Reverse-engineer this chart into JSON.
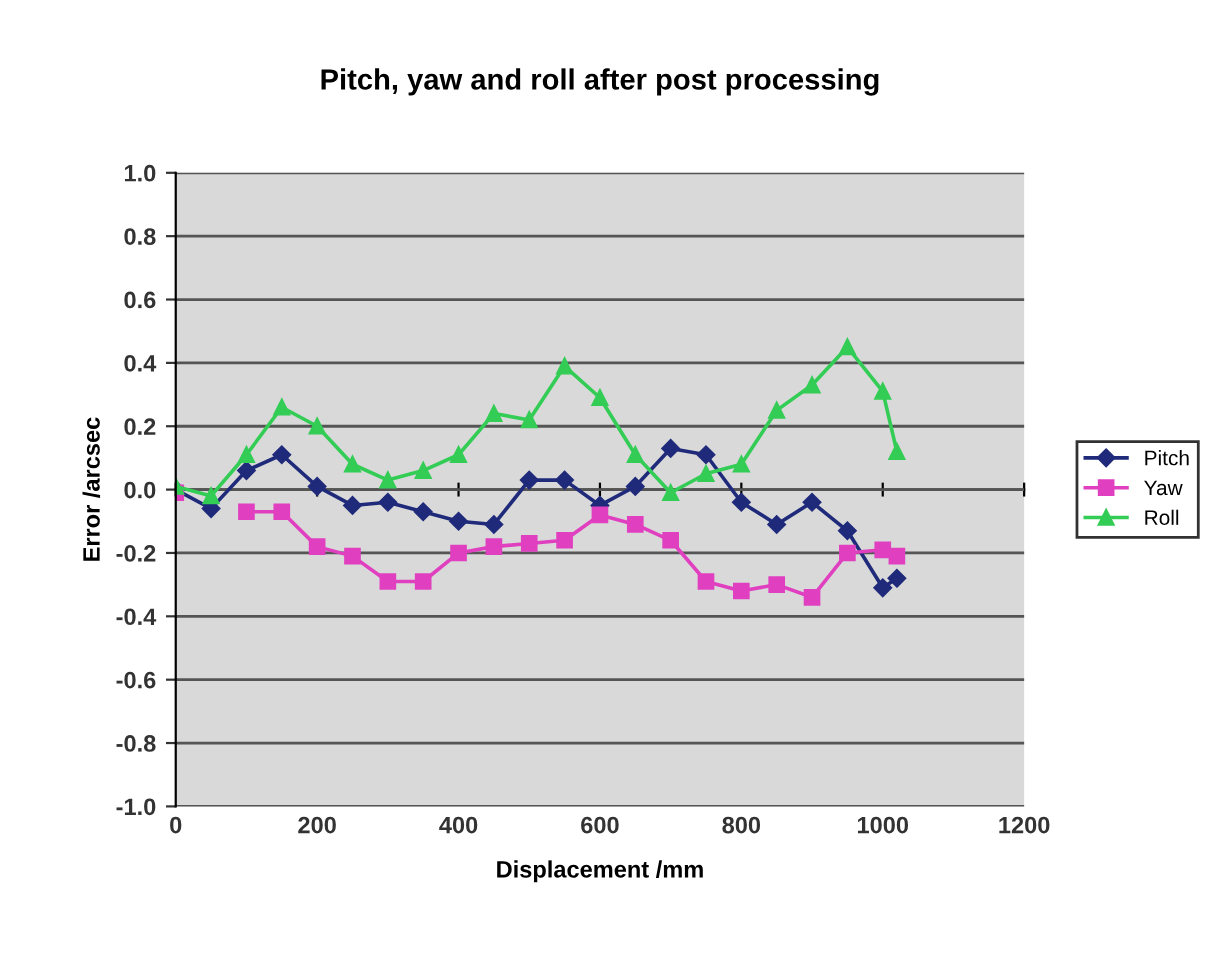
{
  "chart_data": {
    "type": "line",
    "title": "Pitch, yaw and roll after post processing",
    "xlabel": "Displacement /mm",
    "ylabel": "Error /arcsec",
    "x": [
      0,
      50,
      100,
      150,
      200,
      250,
      300,
      350,
      400,
      450,
      500,
      550,
      600,
      650,
      700,
      750,
      800,
      850,
      900,
      950,
      1000,
      1020
    ],
    "series": [
      {
        "name": "Pitch",
        "color": "#1f2a7a",
        "marker": "diamond",
        "values": [
          0.0,
          -0.06,
          0.06,
          0.11,
          0.01,
          -0.05,
          -0.04,
          -0.07,
          -0.1,
          -0.11,
          0.03,
          0.03,
          -0.05,
          0.01,
          0.13,
          0.11,
          -0.04,
          -0.11,
          -0.04,
          -0.13,
          -0.31,
          -0.28
        ]
      },
      {
        "name": "Yaw",
        "color": "#e040c0",
        "marker": "square",
        "values": [
          -0.01,
          null,
          -0.07,
          -0.07,
          -0.18,
          -0.21,
          -0.29,
          -0.29,
          -0.2,
          -0.18,
          -0.17,
          -0.16,
          -0.08,
          -0.11,
          -0.16,
          -0.29,
          -0.32,
          -0.3,
          -0.34,
          -0.2,
          -0.19,
          -0.21
        ]
      },
      {
        "name": "Roll",
        "color": "#33cc55",
        "marker": "triangle",
        "values": [
          0.01,
          -0.02,
          0.11,
          0.26,
          0.2,
          0.08,
          0.03,
          0.06,
          0.11,
          0.24,
          0.22,
          0.39,
          0.29,
          0.11,
          -0.01,
          0.05,
          0.08,
          0.25,
          0.33,
          0.45,
          0.31,
          0.12
        ]
      }
    ],
    "xlim": [
      0,
      1200
    ],
    "xticks": [
      0,
      200,
      400,
      600,
      800,
      1000,
      1200
    ],
    "ylim": [
      -1.0,
      1.0
    ],
    "yticks": [
      {
        "value": -1.0,
        "label": "-1.0"
      },
      {
        "value": -0.8,
        "label": "-0.8"
      },
      {
        "value": -0.6,
        "label": "-0.6"
      },
      {
        "value": -0.4,
        "label": "-0.4"
      },
      {
        "value": -0.2,
        "label": "-0.2"
      },
      {
        "value": 0.0,
        "label": "0.0"
      },
      {
        "value": 0.2,
        "label": "0.2"
      },
      {
        "value": 0.4,
        "label": "0.4"
      },
      {
        "value": 0.6,
        "label": "0.6"
      },
      {
        "value": 0.8,
        "label": "0.8"
      },
      {
        "value": 1.0,
        "label": "1.0"
      }
    ],
    "grid": "y",
    "legend": "right"
  }
}
